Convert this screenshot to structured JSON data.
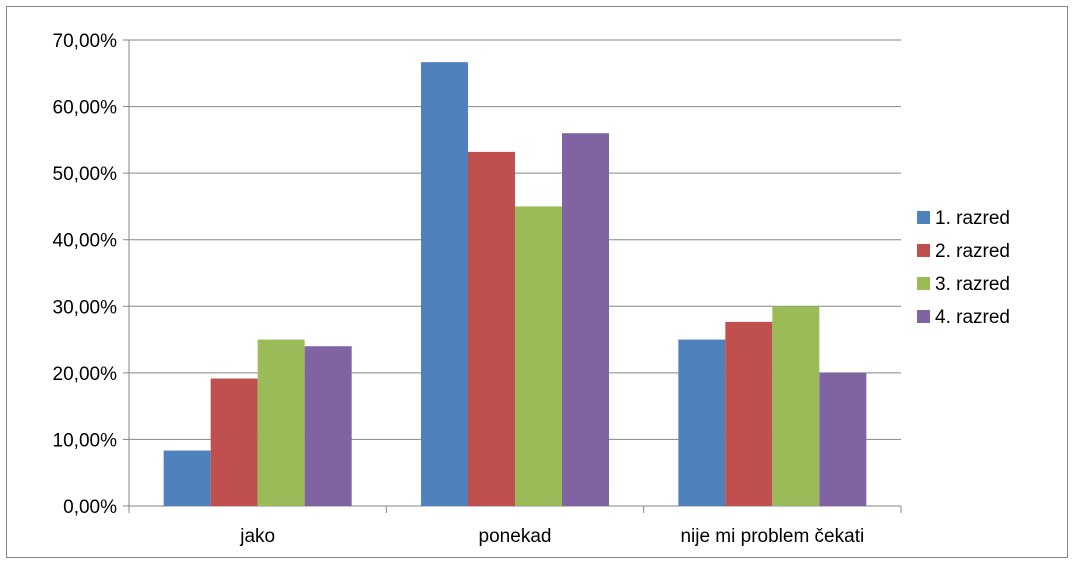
{
  "chart_data": {
    "type": "bar",
    "title": "",
    "xlabel": "",
    "ylabel": "",
    "categories": [
      "jako",
      "ponekad",
      "nije mi problem čekati"
    ],
    "series": [
      {
        "name": "1. razred",
        "color": "#4F81BD",
        "values": [
          8.33,
          66.67,
          25.0
        ]
      },
      {
        "name": "2. razred",
        "color": "#C0504D",
        "values": [
          19.15,
          53.19,
          27.66
        ]
      },
      {
        "name": "3. razred",
        "color": "#9BBB59",
        "values": [
          25.0,
          45.0,
          30.0
        ]
      },
      {
        "name": "4. razred",
        "color": "#8064A2",
        "values": [
          24.0,
          56.0,
          20.0
        ]
      }
    ],
    "ylim": [
      0,
      70
    ],
    "yticks": [
      0,
      10,
      20,
      30,
      40,
      50,
      60,
      70
    ],
    "ytick_labels": [
      "0,00%",
      "10,00%",
      "20,00%",
      "30,00%",
      "40,00%",
      "50,00%",
      "60,00%",
      "70,00%"
    ],
    "grid": true,
    "legend_position": "right"
  }
}
